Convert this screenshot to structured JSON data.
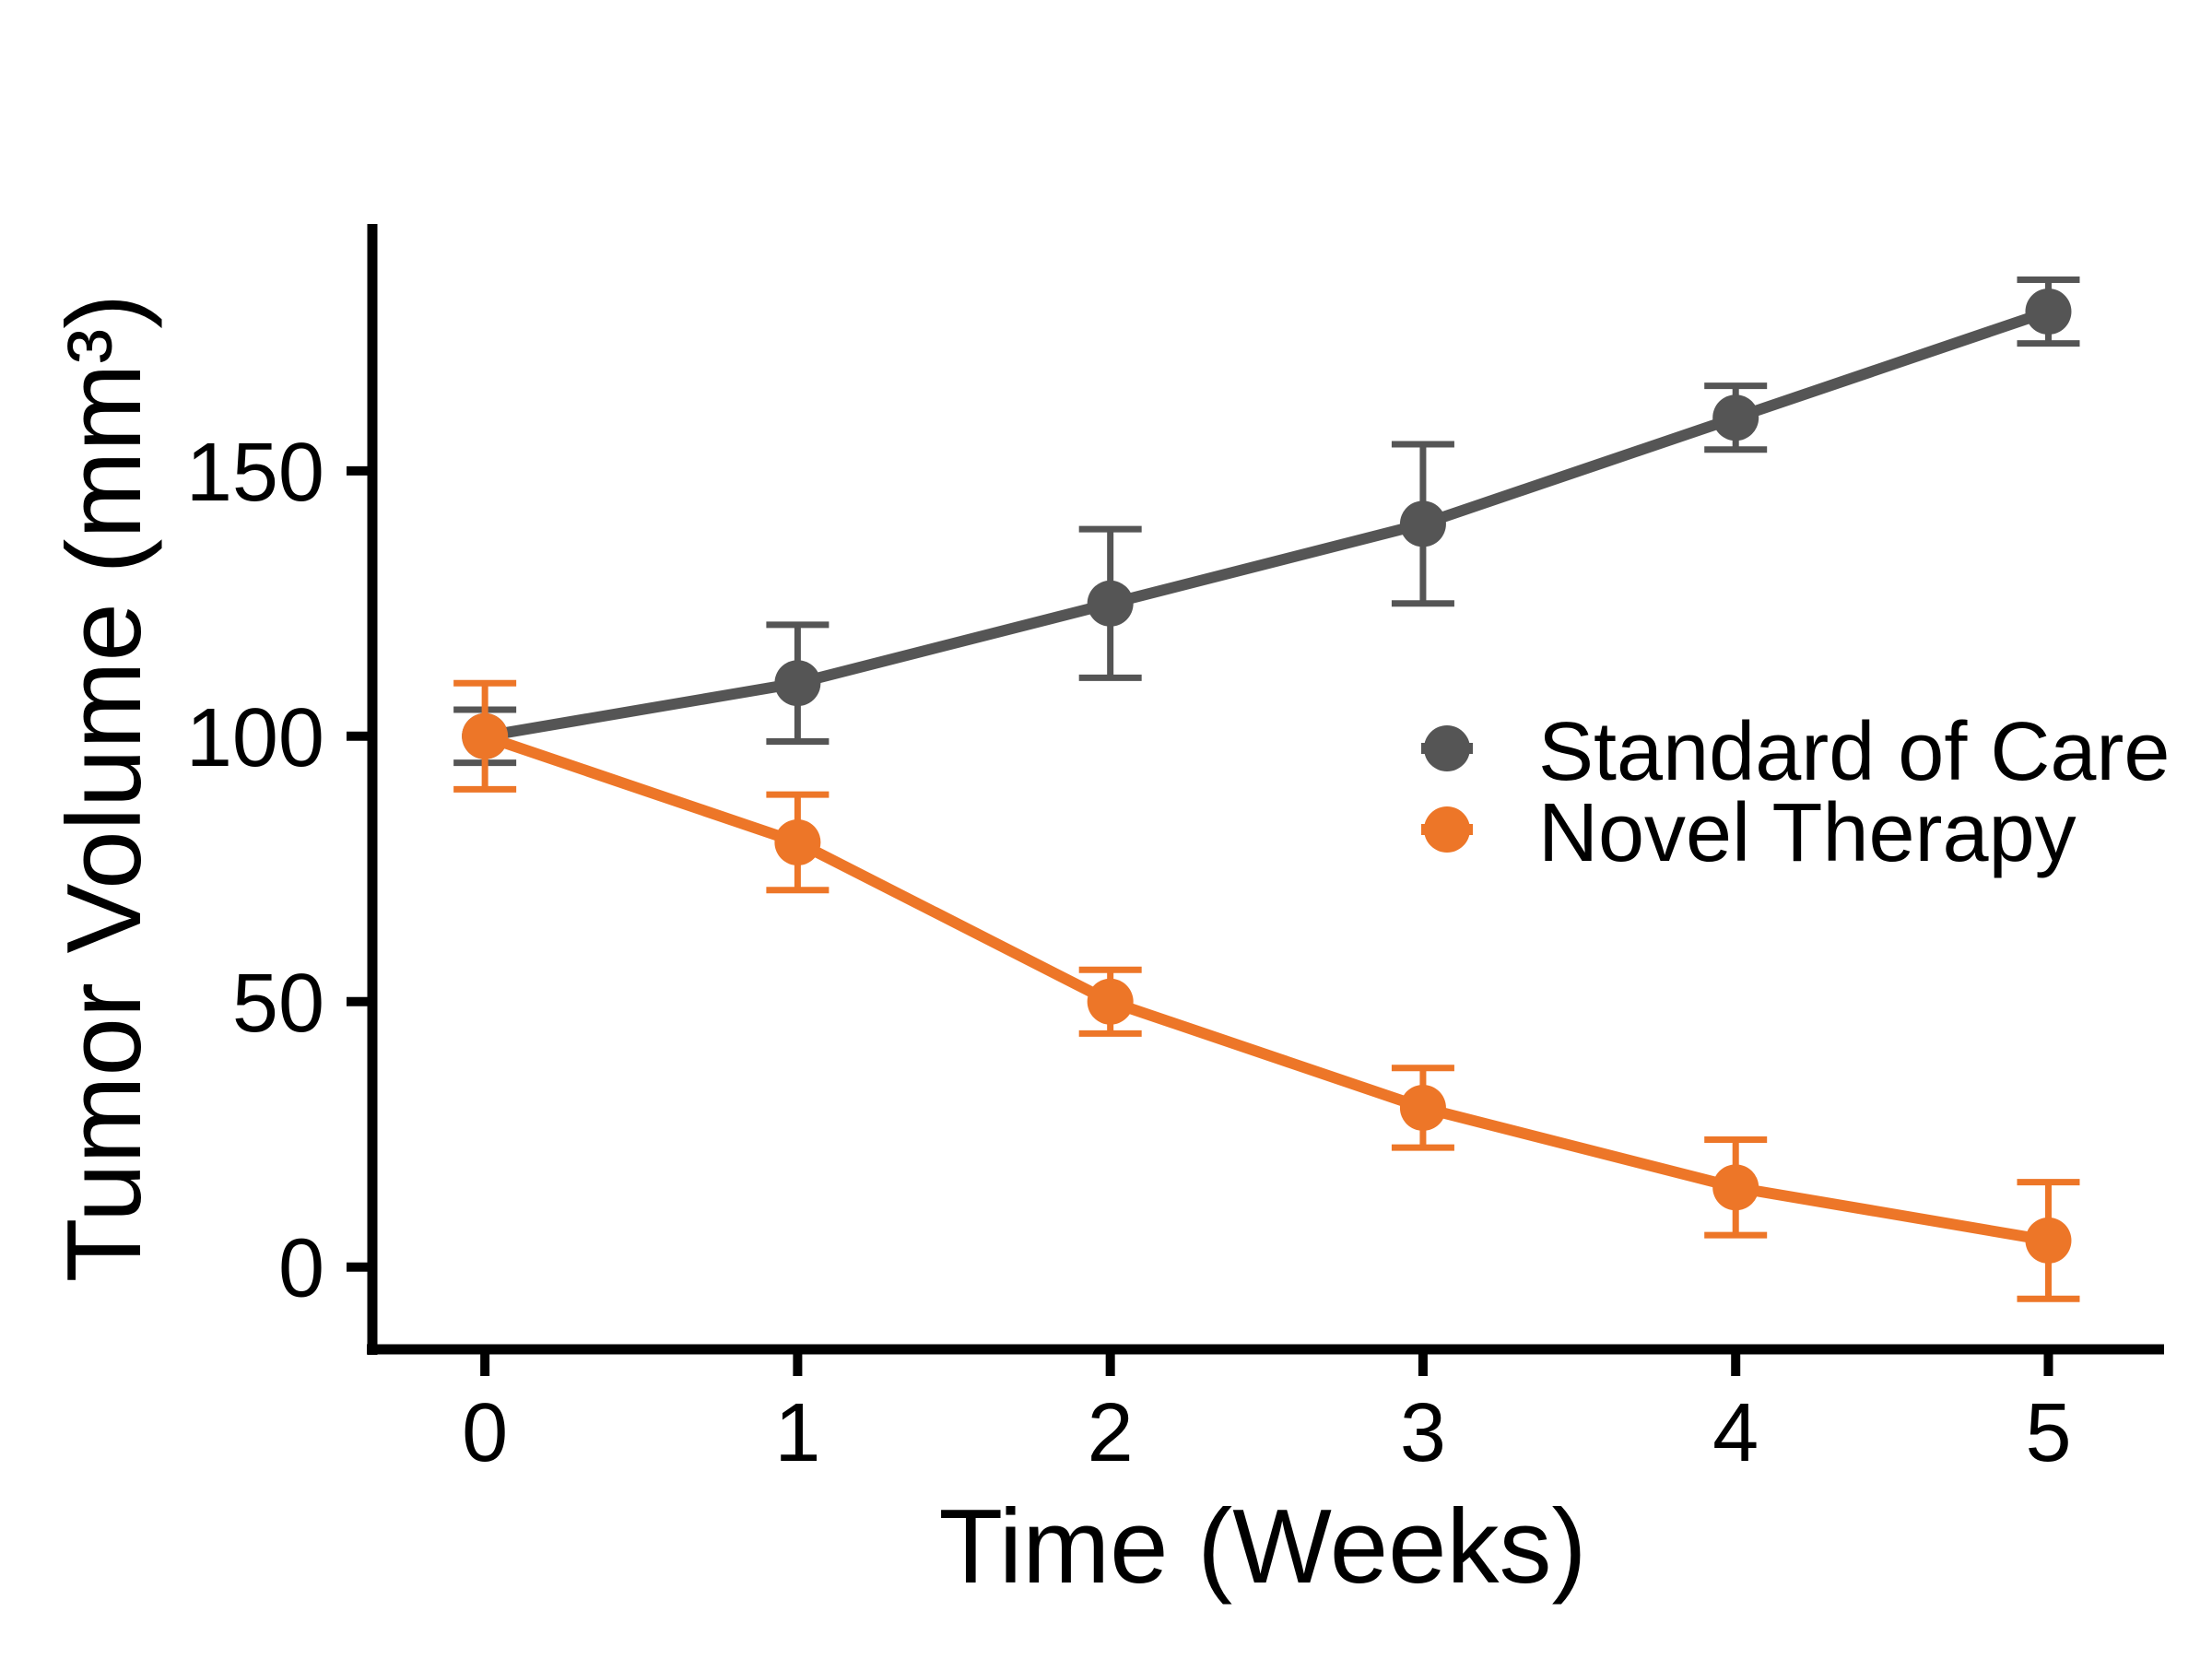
{
  "chart_data": {
    "type": "line",
    "title": "",
    "xlabel": "Time (Weeks)",
    "ylabel": "Tumor Volume (mm³)",
    "x": [
      0,
      1,
      2,
      3,
      4,
      5
    ],
    "x_ticks": [
      0,
      1,
      2,
      3,
      4,
      5
    ],
    "x_tick_labels": [
      "0",
      "1",
      "2",
      "3",
      "4",
      "5"
    ],
    "y_ticks": [
      0,
      50,
      100,
      150
    ],
    "y_tick_labels": [
      "0",
      "50",
      "100",
      "150"
    ],
    "xlim": [
      -0.36,
      5.37
    ],
    "ylim": [
      -15.5,
      196.5
    ],
    "grid": false,
    "legend_position": "right-center",
    "series": [
      {
        "name": "Standard of Care",
        "color": "#555555",
        "values": [
          100,
          110,
          125,
          140,
          160,
          180
        ],
        "error": [
          5,
          11,
          14,
          15,
          6,
          6
        ]
      },
      {
        "name": "Novel Therapy",
        "color": "#ED7628",
        "values": [
          100,
          80,
          50,
          30,
          15,
          5
        ],
        "error": [
          10,
          9,
          6,
          7.5,
          9,
          11
        ]
      }
    ]
  }
}
